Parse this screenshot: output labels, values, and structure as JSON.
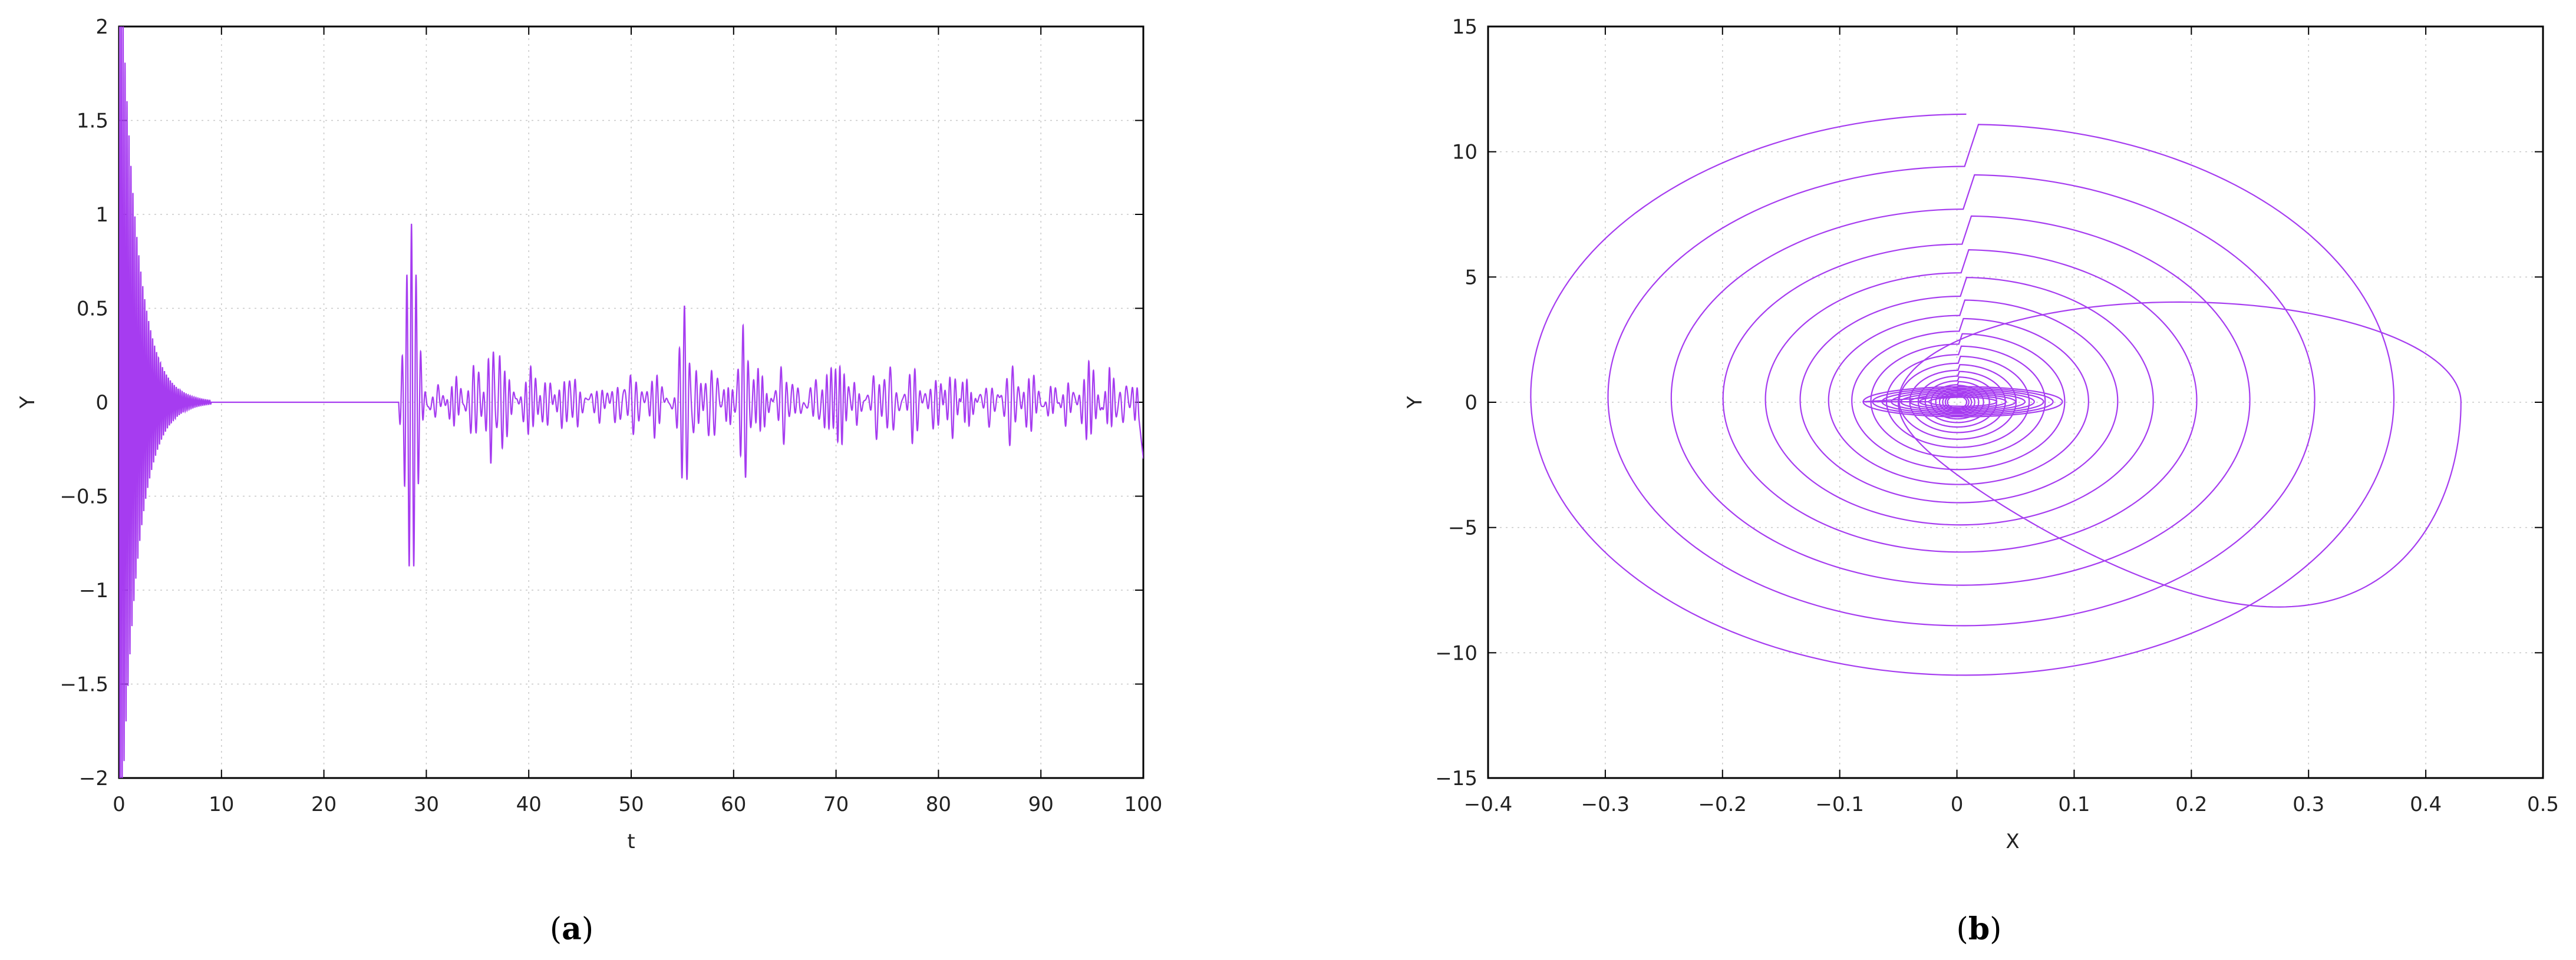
{
  "colors": {
    "line": "#a63cf0",
    "grid": "#c8c8c8",
    "frame": "#000000"
  },
  "chart_data": [
    {
      "type": "line",
      "caption": {
        "open": "(",
        "letter": "a",
        "close": ")"
      },
      "xlabel": "t",
      "ylabel": "Y",
      "xlim": [
        0,
        100
      ],
      "ylim": [
        -2,
        2
      ],
      "grid": true,
      "xticks": [
        0,
        10,
        20,
        30,
        40,
        50,
        60,
        70,
        80,
        90,
        100
      ],
      "xtick_labels": [
        "0",
        "10",
        "20",
        "30",
        "40",
        "50",
        "60",
        "70",
        "80",
        "90",
        "100"
      ],
      "yticks": [
        -2,
        -1.5,
        -1,
        -0.5,
        0,
        0.5,
        1,
        1.5,
        2
      ],
      "ytick_labels": [
        "−2",
        "−1.5",
        "−1",
        "−0.5",
        "0",
        "0.5",
        "1",
        "1.5",
        "2"
      ],
      "series": [
        {
          "description_points": [
            [
              0,
              2.0
            ],
            [
              1,
              -2.0
            ],
            [
              2,
              2.0
            ],
            [
              3,
              -1.4
            ],
            [
              4,
              -0.6
            ],
            [
              5,
              0.35
            ],
            [
              6,
              -0.15
            ],
            [
              7,
              0.05
            ],
            [
              8,
              0.0
            ],
            [
              27,
              0.0
            ],
            [
              28,
              -0.45
            ],
            [
              28.5,
              0.95
            ],
            [
              29,
              -0.78
            ],
            [
              29.5,
              0.58
            ],
            [
              30,
              -0.42
            ],
            [
              31,
              0.1
            ],
            [
              36,
              0.2
            ],
            [
              36.5,
              -0.38
            ],
            [
              37,
              0.23
            ],
            [
              55,
              0.53
            ],
            [
              55.5,
              -0.38
            ],
            [
              61,
              0.43
            ],
            [
              61.5,
              -0.33
            ],
            [
              90,
              0.2
            ],
            [
              100,
              -0.3
            ]
          ]
        }
      ]
    },
    {
      "type": "line",
      "caption": {
        "open": "(",
        "letter": "b",
        "close": ")"
      },
      "xlabel": "X",
      "ylabel": "Y",
      "xlim": [
        -0.4,
        0.5
      ],
      "ylim": [
        -15,
        15
      ],
      "grid": true,
      "xticks": [
        -0.4,
        -0.3,
        -0.2,
        -0.1,
        0,
        0.1,
        0.2,
        0.3,
        0.4,
        0.5
      ],
      "xtick_labels": [
        "−0.4",
        "−0.3",
        "−0.2",
        "−0.1",
        "0",
        "0.1",
        "0.2",
        "0.3",
        "0.4",
        "0.5"
      ],
      "yticks": [
        -15,
        -10,
        -5,
        0,
        5,
        10,
        15
      ],
      "ytick_labels": [
        "−15",
        "−10",
        "−5",
        "0",
        "5",
        "10",
        "15"
      ],
      "series": [
        {
          "description_points": [
            [
              0.43,
              0
            ],
            [
              0.33,
              4.0
            ],
            [
              0.0,
              0.0
            ],
            [
              -0.37,
              0
            ],
            [
              0.0,
              11.4
            ],
            [
              0.0,
              -11.1
            ],
            [
              0.32,
              -3
            ],
            [
              0.06,
              0
            ],
            [
              -0.09,
              0
            ]
          ]
        }
      ]
    }
  ]
}
